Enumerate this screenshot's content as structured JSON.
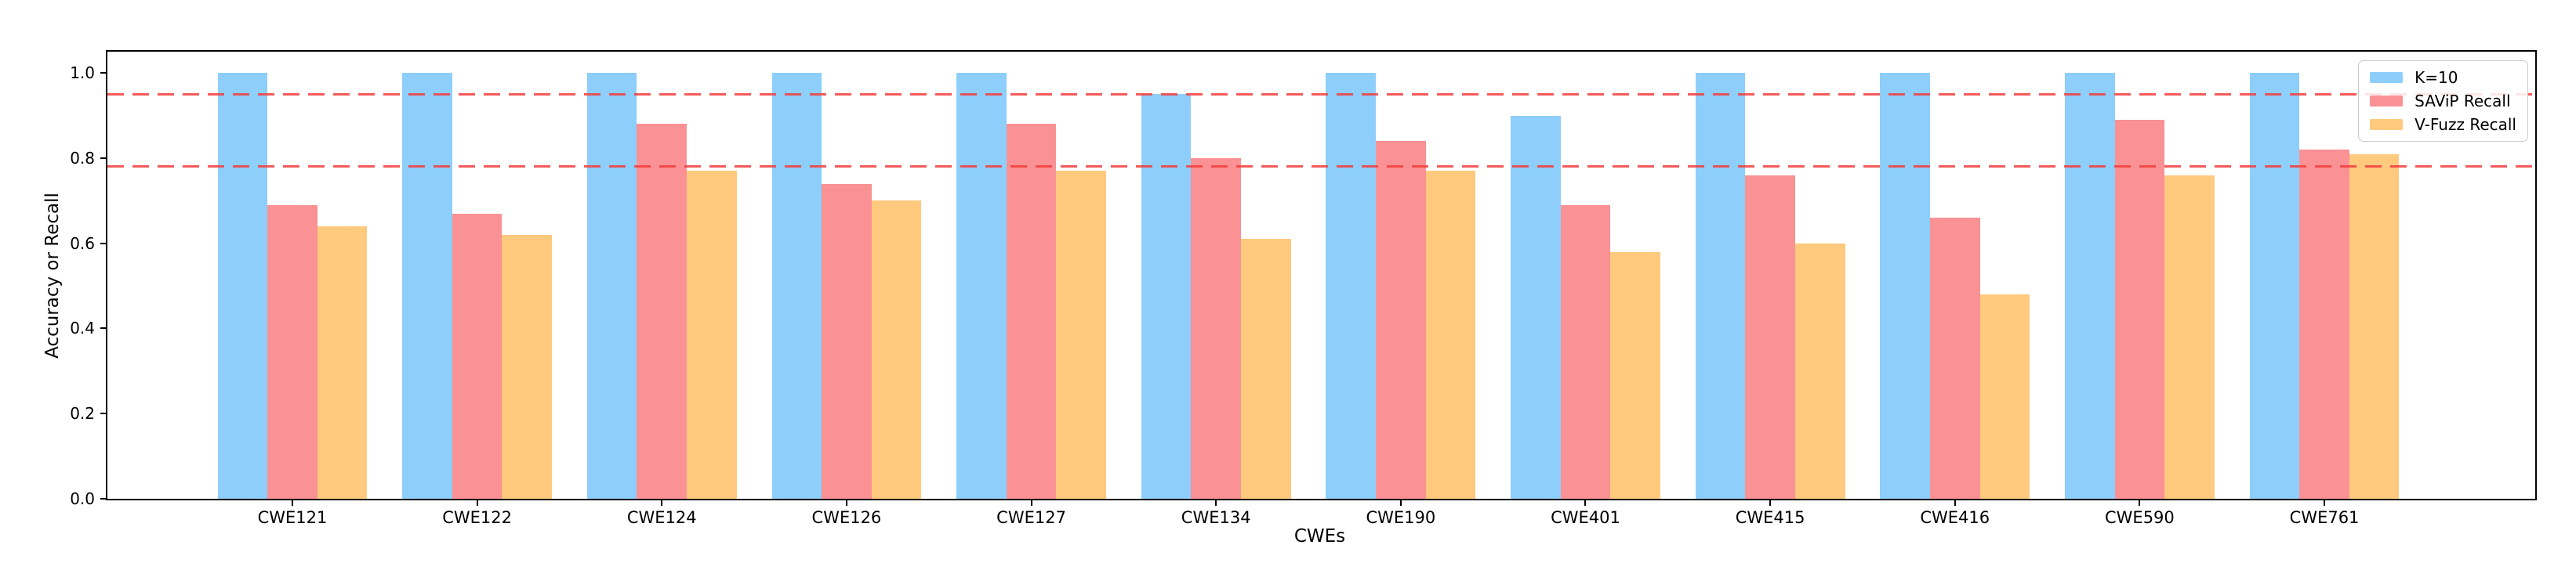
{
  "chart_data": {
    "type": "bar",
    "title": "",
    "xlabel": "CWEs",
    "ylabel": "Accuracy or Recall",
    "categories": [
      "CWE121",
      "CWE122",
      "CWE124",
      "CWE126",
      "CWE127",
      "CWE134",
      "CWE190",
      "CWE401",
      "CWE415",
      "CWE416",
      "CWE590",
      "CWE761"
    ],
    "series": [
      {
        "name": "K=10",
        "color": "#8dcefb",
        "values": [
          1.0,
          1.0,
          1.0,
          1.0,
          1.0,
          0.95,
          1.0,
          0.9,
          1.0,
          1.0,
          1.0,
          1.0
        ]
      },
      {
        "name": "SAViP Recall",
        "color": "#fa9194",
        "values": [
          0.69,
          0.67,
          0.88,
          0.74,
          0.88,
          0.8,
          0.84,
          0.69,
          0.76,
          0.66,
          0.89,
          0.82
        ]
      },
      {
        "name": "V-Fuzz Recall",
        "color": "#ffc97e",
        "values": [
          0.64,
          0.62,
          0.77,
          0.7,
          0.77,
          0.61,
          0.77,
          0.58,
          0.6,
          0.48,
          0.76,
          0.81
        ]
      }
    ],
    "threshold_lines": [
      {
        "value": 0.95,
        "color": "#f23d3d",
        "style": "dashed"
      },
      {
        "value": 0.78,
        "color": "#f23d3d",
        "style": "dashed"
      }
    ],
    "ylim": [
      0,
      1.05
    ],
    "yticks": [
      "0.0",
      "0.2",
      "0.4",
      "0.6",
      "0.8",
      "1.0"
    ],
    "grid": false,
    "legend": {
      "position": "upper-right",
      "entries": [
        "K=10",
        "SAViP Recall",
        "V-Fuzz Recall"
      ]
    }
  }
}
